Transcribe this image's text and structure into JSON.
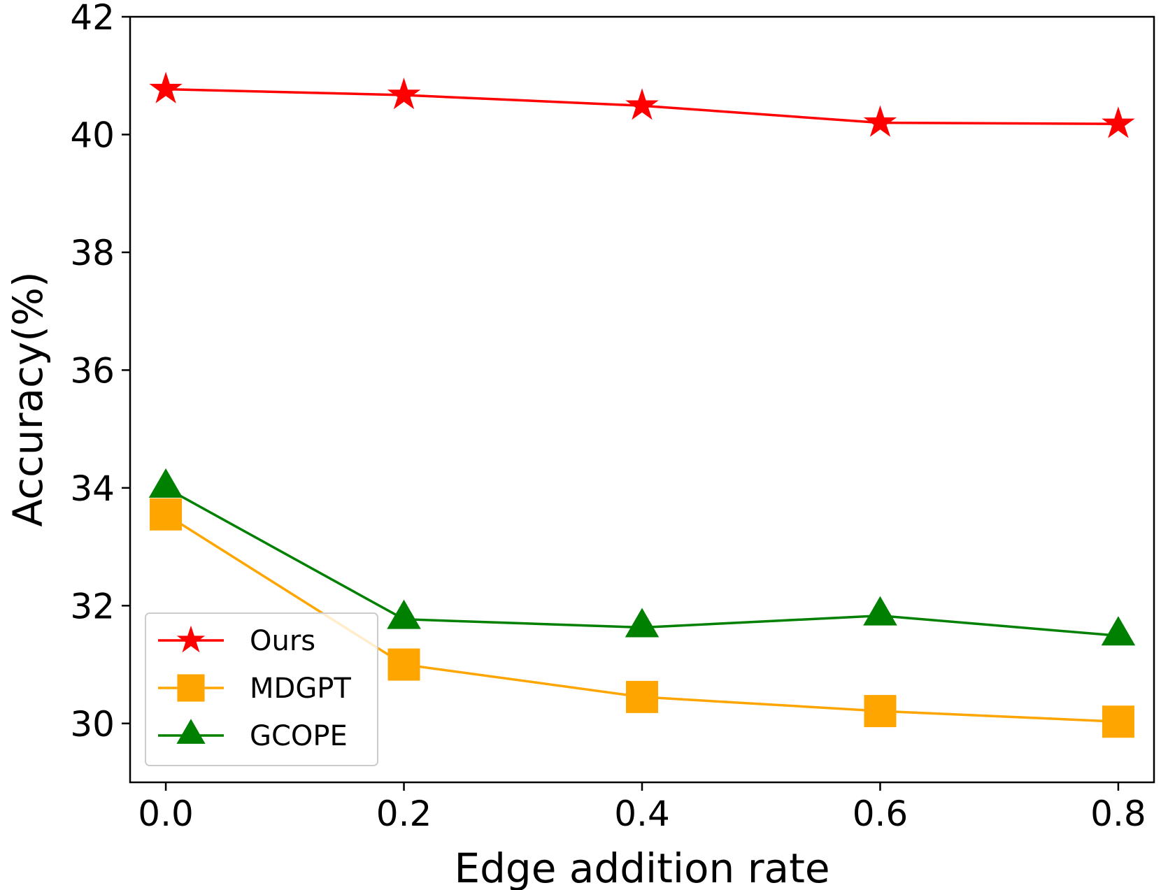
{
  "chart_data": {
    "type": "line",
    "xlabel": "Edge addition rate",
    "ylabel": "Accuracy(%)",
    "x": [
      0.0,
      0.2,
      0.4,
      0.6,
      0.8
    ],
    "xticks": [
      "0.0",
      "0.2",
      "0.4",
      "0.6",
      "0.8"
    ],
    "yticks": [
      "30",
      "32",
      "34",
      "36",
      "38",
      "40",
      "42"
    ],
    "xlim": [
      -0.03,
      0.83
    ],
    "ylim": [
      29.0,
      42.0
    ],
    "grid": false,
    "legend_position": "lower-left",
    "series": [
      {
        "name": "Ours",
        "color": "#ff0000",
        "marker": "star",
        "values": [
          40.77,
          40.67,
          40.49,
          40.2,
          40.18
        ]
      },
      {
        "name": "MDGPT",
        "color": "#ffa500",
        "marker": "square",
        "values": [
          33.55,
          31.0,
          30.45,
          30.21,
          30.03
        ]
      },
      {
        "name": "GCOPE",
        "color": "#008000",
        "marker": "triangle",
        "values": [
          34.0,
          31.77,
          31.63,
          31.83,
          31.49
        ]
      }
    ]
  }
}
